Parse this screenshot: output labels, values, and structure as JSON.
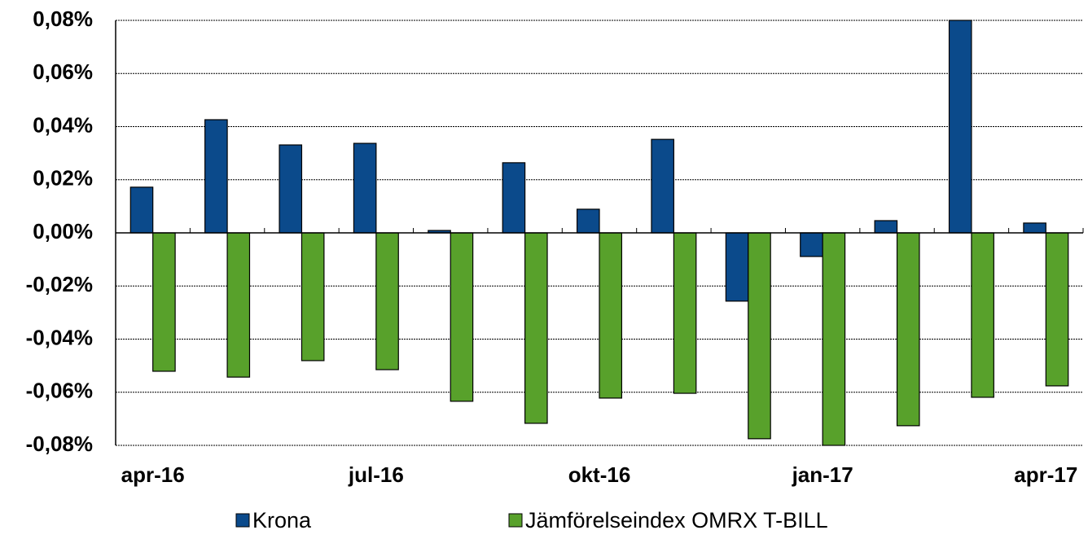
{
  "chart_data": {
    "type": "bar",
    "categories": [
      "apr-16",
      null,
      null,
      "jul-16",
      null,
      null,
      "okt-16",
      null,
      null,
      "jan-17",
      null,
      null,
      "apr-17"
    ],
    "series": [
      {
        "name": "Krona",
        "color": "#0b4a8b",
        "values": [
          0.0172,
          0.0426,
          0.0331,
          0.0337,
          0.0009,
          0.0264,
          0.0089,
          0.0352,
          -0.0257,
          -0.0089,
          0.0046,
          0.08,
          0.0037
        ]
      },
      {
        "name": "Jämförelseindex OMRX T-BILL",
        "color": "#58a12b",
        "values": [
          -0.0521,
          -0.0543,
          -0.0481,
          -0.0515,
          -0.0634,
          -0.0717,
          -0.0622,
          -0.0604,
          -0.0775,
          -0.08,
          -0.0726,
          -0.0619,
          -0.0576
        ]
      }
    ],
    "ylim": [
      -0.08,
      0.08
    ],
    "yticks": [
      {
        "value": -0.08,
        "label": "-0,08%"
      },
      {
        "value": -0.06,
        "label": "-0,06%"
      },
      {
        "value": -0.04,
        "label": "-0,04%"
      },
      {
        "value": -0.02,
        "label": "-0,02%"
      },
      {
        "value": 0,
        "label": "0,00%"
      },
      {
        "value": 0.02,
        "label": "0,02%"
      },
      {
        "value": 0.04,
        "label": "0,04%"
      },
      {
        "value": 0.06,
        "label": "0,06%"
      },
      {
        "value": 0.08,
        "label": "0,08%"
      }
    ],
    "grid": true
  }
}
